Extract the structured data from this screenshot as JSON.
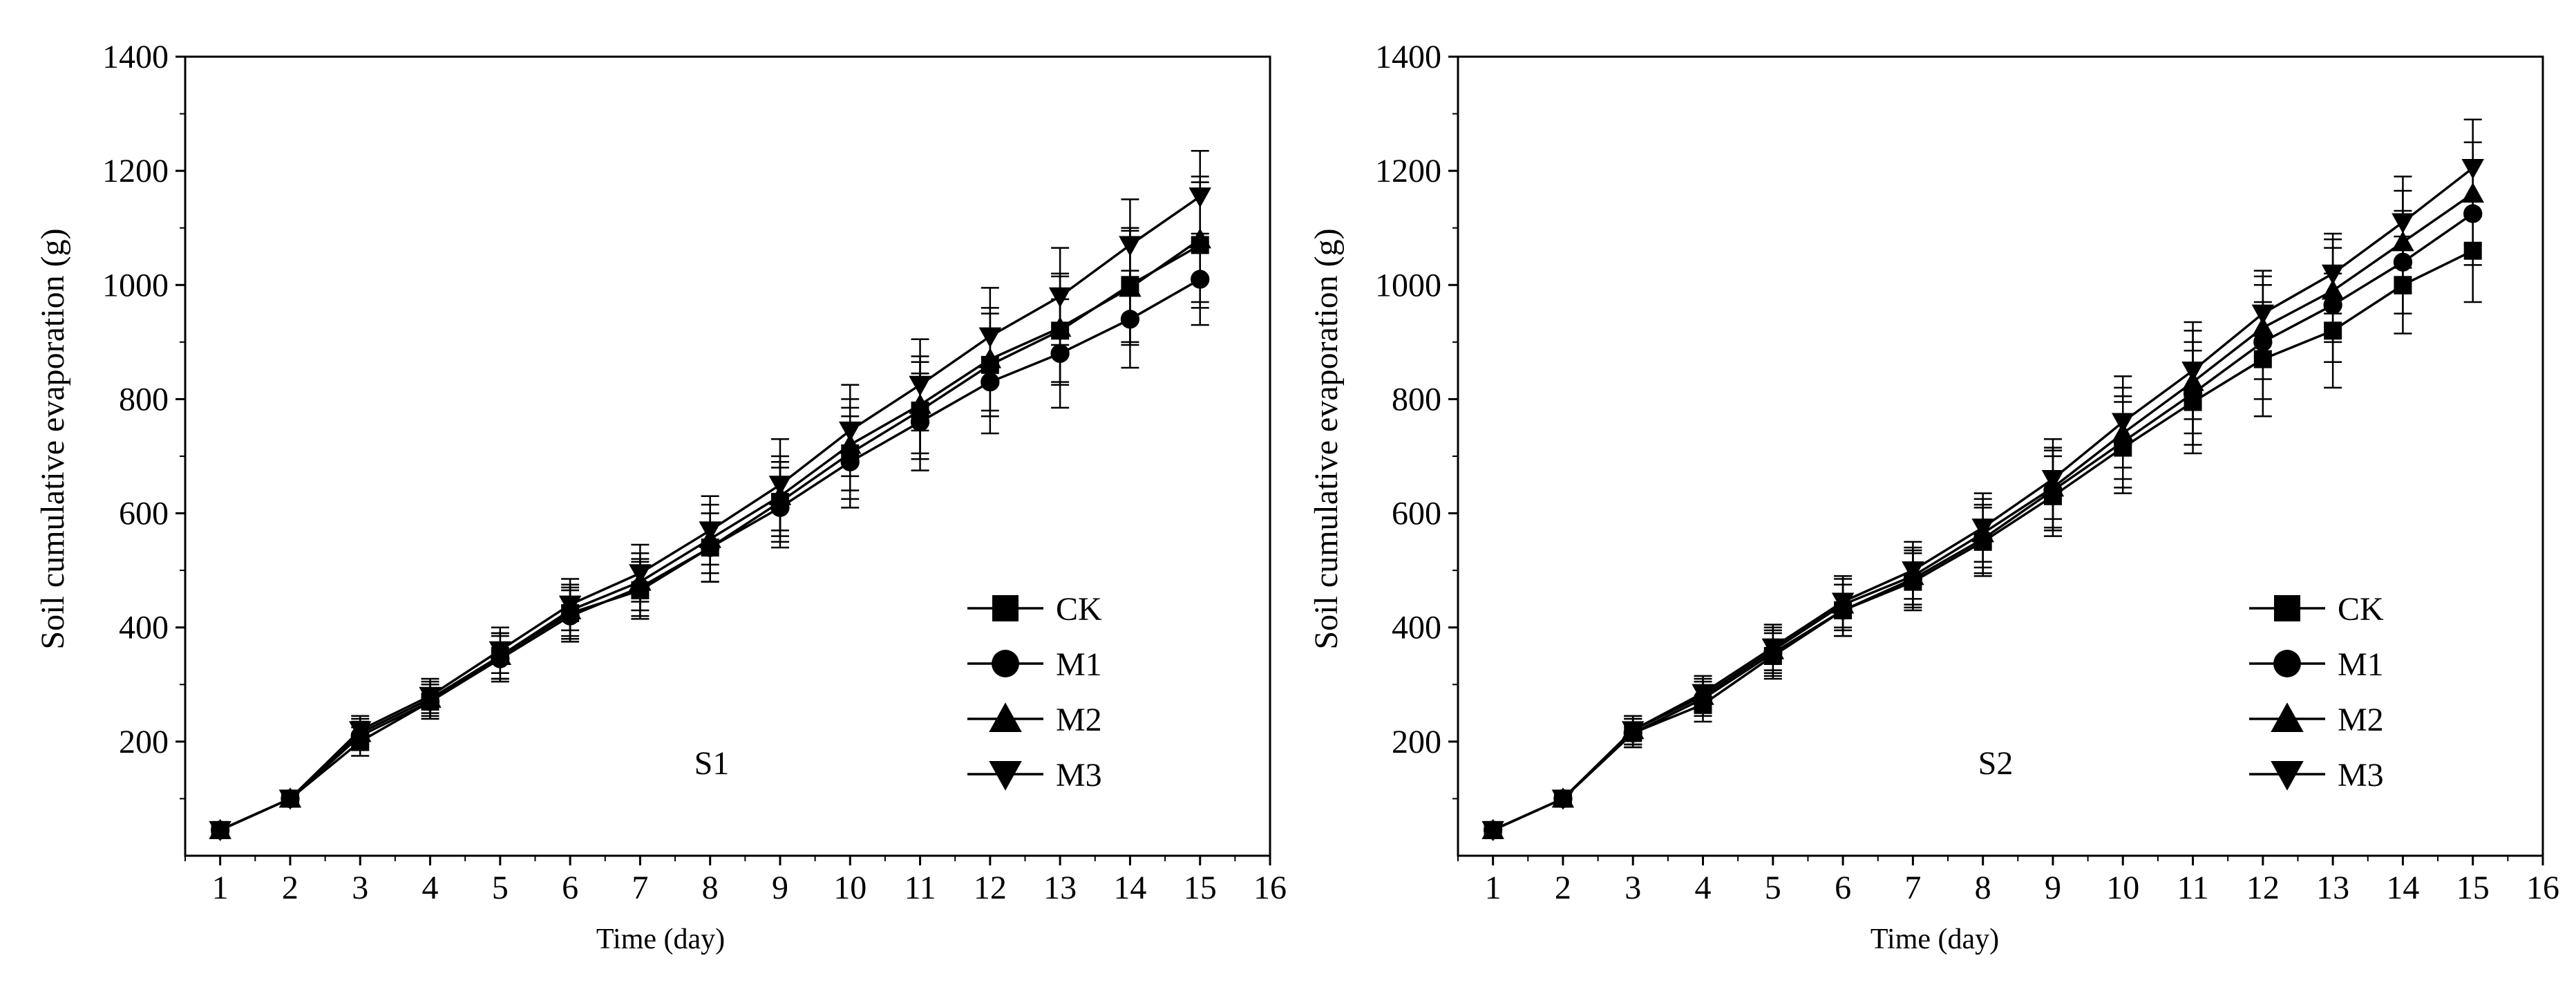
{
  "chart_data": [
    {
      "type": "line",
      "panel_label": "S1",
      "xlabel": "Time (day)",
      "ylabel": "Soil cumulative evaporation (g)",
      "xlim": [
        0.5,
        16
      ],
      "ylim": [
        0,
        1400
      ],
      "xticks": [
        1,
        2,
        3,
        4,
        5,
        6,
        7,
        8,
        9,
        10,
        11,
        12,
        13,
        14,
        15,
        16
      ],
      "yticks": [
        200,
        400,
        600,
        800,
        1000,
        1200,
        1400
      ],
      "x": [
        1,
        2,
        3,
        4,
        5,
        6,
        7,
        8,
        9,
        10,
        11,
        12,
        13,
        14,
        15
      ],
      "legend_position": "bottom-right",
      "series": [
        {
          "name": "CK",
          "marker": "square",
          "values": [
            45,
            100,
            200,
            270,
            350,
            425,
            465,
            540,
            620,
            705,
            780,
            860,
            920,
            1000,
            1070
          ],
          "errors": [
            10,
            12,
            25,
            30,
            40,
            45,
            50,
            60,
            70,
            80,
            85,
            90,
            95,
            100,
            110
          ]
        },
        {
          "name": "M1",
          "marker": "circle",
          "values": [
            45,
            100,
            210,
            270,
            345,
            420,
            470,
            540,
            610,
            690,
            760,
            830,
            880,
            940,
            1010
          ],
          "errors": [
            10,
            12,
            25,
            30,
            40,
            45,
            50,
            60,
            70,
            80,
            85,
            90,
            95,
            85,
            80
          ]
        },
        {
          "name": "M2",
          "marker": "triangle-up",
          "values": [
            45,
            100,
            215,
            275,
            350,
            430,
            480,
            555,
            630,
            720,
            790,
            870,
            925,
            995,
            1080
          ],
          "errors": [
            10,
            12,
            25,
            30,
            40,
            45,
            50,
            60,
            70,
            80,
            85,
            90,
            95,
            100,
            110
          ]
        },
        {
          "name": "M3",
          "marker": "triangle-down",
          "values": [
            45,
            100,
            220,
            280,
            360,
            440,
            495,
            570,
            650,
            745,
            825,
            910,
            980,
            1070,
            1155
          ],
          "errors": [
            10,
            12,
            25,
            30,
            40,
            45,
            50,
            60,
            80,
            80,
            80,
            85,
            85,
            80,
            80
          ]
        }
      ]
    },
    {
      "type": "line",
      "panel_label": "S2",
      "xlabel": "Time (day)",
      "ylabel": "Soil cumulative evaporation (g)",
      "xlim": [
        0.5,
        16
      ],
      "ylim": [
        0,
        1400
      ],
      "xticks": [
        1,
        2,
        3,
        4,
        5,
        6,
        7,
        8,
        9,
        10,
        11,
        12,
        13,
        14,
        15,
        16
      ],
      "yticks": [
        200,
        400,
        600,
        800,
        1000,
        1200,
        1400
      ],
      "x": [
        1,
        2,
        3,
        4,
        5,
        6,
        7,
        8,
        9,
        10,
        11,
        12,
        13,
        14,
        15
      ],
      "legend_position": "bottom-right",
      "series": [
        {
          "name": "CK",
          "marker": "square",
          "values": [
            45,
            100,
            215,
            265,
            350,
            430,
            480,
            550,
            630,
            715,
            795,
            870,
            920,
            1000,
            1060
          ],
          "errors": [
            10,
            12,
            25,
            30,
            40,
            45,
            50,
            60,
            70,
            80,
            90,
            100,
            100,
            85,
            90
          ]
        },
        {
          "name": "M1",
          "marker": "circle",
          "values": [
            45,
            100,
            215,
            275,
            355,
            430,
            485,
            555,
            640,
            725,
            810,
            900,
            965,
            1040,
            1125
          ],
          "errors": [
            10,
            12,
            25,
            30,
            40,
            45,
            50,
            60,
            70,
            80,
            90,
            100,
            100,
            90,
            90
          ]
        },
        {
          "name": "M2",
          "marker": "triangle-up",
          "values": [
            45,
            100,
            220,
            280,
            360,
            440,
            490,
            565,
            645,
            740,
            830,
            925,
            990,
            1075,
            1160
          ],
          "errors": [
            10,
            12,
            25,
            30,
            40,
            45,
            50,
            60,
            70,
            80,
            90,
            90,
            90,
            90,
            90
          ]
        },
        {
          "name": "M3",
          "marker": "triangle-down",
          "values": [
            45,
            100,
            220,
            285,
            365,
            445,
            500,
            575,
            660,
            760,
            850,
            950,
            1020,
            1110,
            1205
          ],
          "errors": [
            10,
            12,
            25,
            30,
            40,
            45,
            50,
            60,
            70,
            80,
            85,
            75,
            70,
            80,
            85
          ]
        }
      ]
    }
  ]
}
